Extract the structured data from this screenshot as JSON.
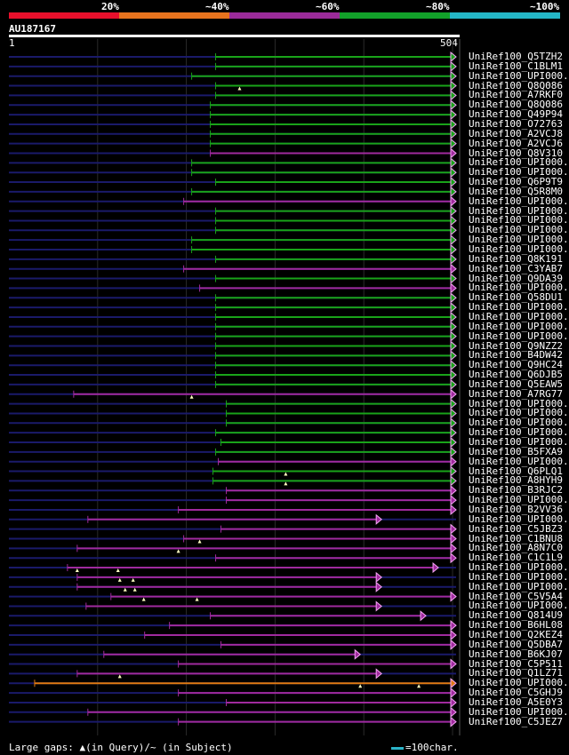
{
  "identity_bar": {
    "labels": [
      "20%",
      "~40%",
      "~60%",
      "~80%",
      "~100%"
    ],
    "segments": [
      {
        "color": "#e8102c"
      },
      {
        "color": "#e8741e"
      },
      {
        "color": "#9b2b9a"
      },
      {
        "color": "#12a12a"
      },
      {
        "color": "#24b6c6"
      }
    ]
  },
  "query": {
    "id": "AU187167",
    "start": "1",
    "end": "504",
    "length": 504
  },
  "legend": {
    "text": "Large gaps: ▲(in Query)/~ (in Subject)",
    "scale_text": "=100char."
  },
  "colors": {
    "green": "#19a319",
    "purple": "#a02a9e",
    "orange": "#e07a10",
    "pink": "#f5a5f5",
    "query_line": "#1a1a6a",
    "grid": "#2a2a2a"
  },
  "hits": [
    {
      "label": "UniRef100_Q5TZH2",
      "start": 233,
      "end": 504,
      "color": "green"
    },
    {
      "label": "UniRef100_C1BLM1",
      "start": 233,
      "end": 504,
      "color": "green"
    },
    {
      "label": "UniRef100_UPI000..",
      "start": 206,
      "end": 504,
      "color": "green"
    },
    {
      "label": "UniRef100_Q8Q086",
      "start": 233,
      "end": 504,
      "color": "green",
      "marks": [
        260
      ]
    },
    {
      "label": "UniRef100_A7RKF0",
      "start": 233,
      "end": 504,
      "color": "green"
    },
    {
      "label": "UniRef100_Q8Q086",
      "start": 227,
      "end": 504,
      "color": "green"
    },
    {
      "label": "UniRef100_Q49P94",
      "start": 227,
      "end": 504,
      "color": "green"
    },
    {
      "label": "UniRef100_O72763",
      "start": 227,
      "end": 504,
      "color": "green"
    },
    {
      "label": "UniRef100_A2VCJ8",
      "start": 227,
      "end": 504,
      "color": "green"
    },
    {
      "label": "UniRef100_A2VCJ6",
      "start": 227,
      "end": 504,
      "color": "green"
    },
    {
      "label": "UniRef100_Q8V310",
      "start": 227,
      "end": 504,
      "color": "purple"
    },
    {
      "label": "UniRef100_UPI000..",
      "start": 206,
      "end": 504,
      "color": "green"
    },
    {
      "label": "UniRef100_UPI000..",
      "start": 206,
      "end": 504,
      "color": "green"
    },
    {
      "label": "UniRef100_Q6P9T9",
      "start": 233,
      "end": 504,
      "color": "green"
    },
    {
      "label": "UniRef100_Q5R8M0",
      "start": 206,
      "end": 504,
      "color": "green"
    },
    {
      "label": "UniRef100_UPI000..",
      "start": 197,
      "end": 504,
      "color": "purple"
    },
    {
      "label": "UniRef100_UPI000..",
      "start": 233,
      "end": 504,
      "color": "green"
    },
    {
      "label": "UniRef100_UPI000..",
      "start": 233,
      "end": 504,
      "color": "green"
    },
    {
      "label": "UniRef100_UPI000..",
      "start": 233,
      "end": 504,
      "color": "green"
    },
    {
      "label": "UniRef100_UPI000..",
      "start": 206,
      "end": 504,
      "color": "green"
    },
    {
      "label": "UniRef100_UPI000..",
      "start": 206,
      "end": 504,
      "color": "green"
    },
    {
      "label": "UniRef100_Q8K191",
      "start": 233,
      "end": 504,
      "color": "green"
    },
    {
      "label": "UniRef100_C3YAB7",
      "start": 197,
      "end": 504,
      "color": "purple"
    },
    {
      "label": "UniRef100_Q9DA39",
      "start": 233,
      "end": 504,
      "color": "green"
    },
    {
      "label": "UniRef100_UPI000..",
      "start": 215,
      "end": 504,
      "color": "purple"
    },
    {
      "label": "UniRef100_Q58DU1",
      "start": 233,
      "end": 504,
      "color": "green"
    },
    {
      "label": "UniRef100_UPI000..",
      "start": 233,
      "end": 504,
      "color": "green"
    },
    {
      "label": "UniRef100_UPI000..",
      "start": 233,
      "end": 504,
      "color": "green"
    },
    {
      "label": "UniRef100_UPI000..",
      "start": 233,
      "end": 504,
      "color": "green"
    },
    {
      "label": "UniRef100_UPI000..",
      "start": 233,
      "end": 504,
      "color": "green"
    },
    {
      "label": "UniRef100_Q9NZZ2",
      "start": 233,
      "end": 504,
      "color": "green"
    },
    {
      "label": "UniRef100_B4DW42",
      "start": 233,
      "end": 504,
      "color": "green"
    },
    {
      "label": "UniRef100_Q9HC24",
      "start": 233,
      "end": 504,
      "color": "green"
    },
    {
      "label": "UniRef100_Q6DJB5",
      "start": 233,
      "end": 504,
      "color": "green"
    },
    {
      "label": "UniRef100_Q5EAW5",
      "start": 233,
      "end": 504,
      "color": "green"
    },
    {
      "label": "UniRef100_A7RG77",
      "start": 73,
      "end": 504,
      "color": "purple",
      "marks": [
        206
      ]
    },
    {
      "label": "UniRef100_UPI000..",
      "start": 245,
      "end": 504,
      "color": "green"
    },
    {
      "label": "UniRef100_UPI000..",
      "start": 245,
      "end": 504,
      "color": "green"
    },
    {
      "label": "UniRef100_UPI000..",
      "start": 245,
      "end": 504,
      "color": "green"
    },
    {
      "label": "UniRef100_UPI000..",
      "start": 233,
      "end": 504,
      "color": "green"
    },
    {
      "label": "UniRef100_UPI000..",
      "start": 239,
      "end": 504,
      "color": "green"
    },
    {
      "label": "UniRef100_B5FXA9",
      "start": 233,
      "end": 504,
      "color": "green"
    },
    {
      "label": "UniRef100_UPI000..",
      "start": 236,
      "end": 504,
      "color": "purple"
    },
    {
      "label": "UniRef100_Q6PLQ1",
      "start": 230,
      "end": 504,
      "color": "green",
      "marks": [
        312
      ]
    },
    {
      "label": "UniRef100_A8HYH9",
      "start": 230,
      "end": 504,
      "color": "green",
      "marks": [
        312
      ]
    },
    {
      "label": "UniRef100_B3RJC2",
      "start": 245,
      "end": 504,
      "color": "purple"
    },
    {
      "label": "UniRef100_UPI000..",
      "start": 245,
      "end": 504,
      "color": "purple"
    },
    {
      "label": "UniRef100_B2VV36",
      "start": 191,
      "end": 504,
      "color": "purple"
    },
    {
      "label": "UniRef100_UPI000..",
      "start": 89,
      "end": 420,
      "color": "purple"
    },
    {
      "label": "UniRef100_C5JBZ3",
      "start": 239,
      "end": 504,
      "color": "purple"
    },
    {
      "label": "UniRef100_C1BNU8",
      "start": 197,
      "end": 504,
      "color": "purple",
      "marks": [
        215
      ]
    },
    {
      "label": "UniRef100_A8N7C0",
      "start": 77,
      "end": 504,
      "color": "purple",
      "marks": [
        191
      ]
    },
    {
      "label": "UniRef100_C1C1L9",
      "start": 233,
      "end": 504,
      "color": "purple"
    },
    {
      "label": "UniRef100_UPI000..",
      "start": 66,
      "end": 484,
      "color": "purple",
      "marks": [
        77,
        123
      ]
    },
    {
      "label": "UniRef100_UPI000..",
      "start": 77,
      "end": 420,
      "color": "purple",
      "marks": [
        125,
        140
      ]
    },
    {
      "label": "UniRef100_UPI000..",
      "start": 77,
      "end": 420,
      "color": "purple",
      "marks": [
        131,
        142
      ]
    },
    {
      "label": "UniRef100_C5V5A4",
      "start": 115,
      "end": 504,
      "color": "purple",
      "marks": [
        152,
        212
      ]
    },
    {
      "label": "UniRef100_UPI000..",
      "start": 87,
      "end": 420,
      "color": "purple"
    },
    {
      "label": "UniRef100_Q814U9",
      "start": 227,
      "end": 470,
      "color": "purple"
    },
    {
      "label": "UniRef100_B6HL08",
      "start": 181,
      "end": 504,
      "color": "purple"
    },
    {
      "label": "UniRef100_Q2KEZ4",
      "start": 153,
      "end": 504,
      "color": "purple"
    },
    {
      "label": "UniRef100_Q5DBA7",
      "start": 239,
      "end": 504,
      "color": "purple"
    },
    {
      "label": "UniRef100_B6KJ07",
      "start": 107,
      "end": 396,
      "color": "purple"
    },
    {
      "label": "UniRef100_C5P511",
      "start": 191,
      "end": 504,
      "color": "purple"
    },
    {
      "label": "UniRef100_Q1LZ71",
      "start": 77,
      "end": 420,
      "color": "purple",
      "marks": [
        125
      ]
    },
    {
      "label": "UniRef100_UPI000..",
      "start": 29,
      "end": 504,
      "color": "orange",
      "marks": [
        396,
        462
      ]
    },
    {
      "label": "UniRef100_C5GHJ9",
      "start": 191,
      "end": 504,
      "color": "purple"
    },
    {
      "label": "UniRef100_A5E0Y3",
      "start": 245,
      "end": 504,
      "color": "purple"
    },
    {
      "label": "UniRef100_UPI000..",
      "start": 89,
      "end": 504,
      "color": "purple"
    },
    {
      "label": "UniRef100_C5JEZ7",
      "start": 191,
      "end": 504,
      "color": "purple"
    }
  ]
}
